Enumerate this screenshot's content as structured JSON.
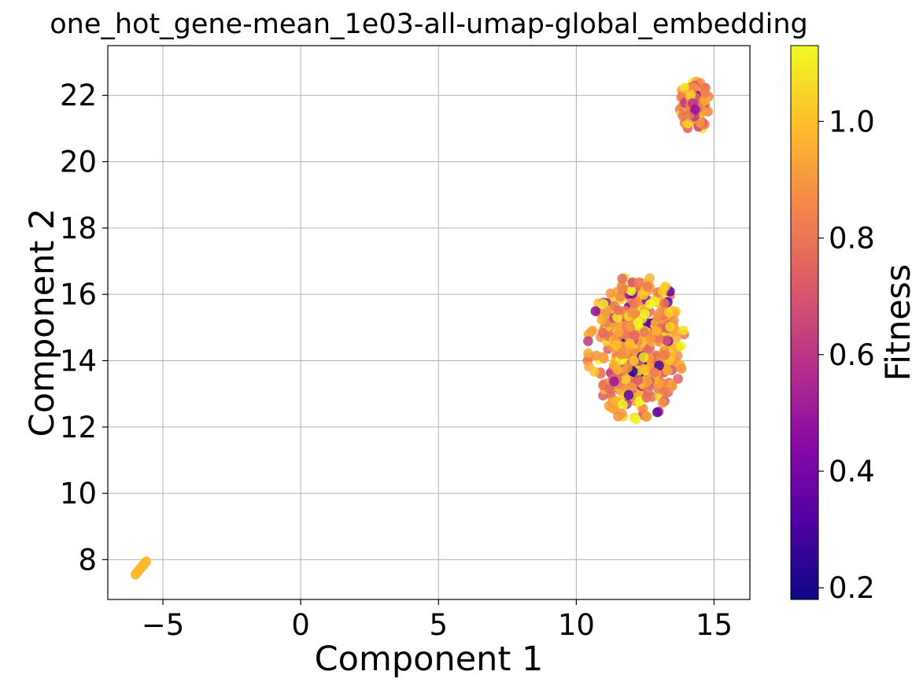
{
  "chart_data": {
    "type": "scatter",
    "title": "one_hot_gene-mean_1e03-all-umap-global_embedding",
    "xlabel": "Component 1",
    "ylabel": "Component 2",
    "xlim": [
      -7.0,
      16.3
    ],
    "ylim": [
      6.8,
      23.5
    ],
    "xticks": [
      -5,
      0,
      5,
      10,
      15
    ],
    "xtick_labels": [
      "−5",
      "0",
      "5",
      "10",
      "15"
    ],
    "yticks": [
      8,
      10,
      12,
      14,
      16,
      18,
      20,
      22
    ],
    "ytick_labels": [
      "8",
      "10",
      "12",
      "14",
      "16",
      "18",
      "20",
      "22"
    ],
    "grid": true,
    "colormap": "plasma",
    "colorbar": {
      "label": "Fitness",
      "range": [
        0.18,
        1.13
      ],
      "ticks": [
        0.2,
        0.4,
        0.6,
        0.8,
        1.0
      ],
      "tick_labels": [
        "0.2",
        "0.4",
        "0.6",
        "0.8",
        "1.0"
      ],
      "colors": [
        "#0d0887",
        "#5302a3",
        "#8b0aa5",
        "#b83289",
        "#db5c68",
        "#f48849",
        "#febd2a",
        "#f0f921"
      ]
    },
    "clusters": [
      {
        "center": [
          12.2,
          14.4
        ],
        "spread": [
          1.1,
          1.3
        ],
        "count": 520,
        "fitness_mean": 0.9,
        "fitness_low_share": 0.08
      },
      {
        "center": [
          14.3,
          21.7
        ],
        "spread": [
          0.35,
          0.45
        ],
        "count": 150,
        "fitness_mean": 0.88,
        "fitness_low_share": 0.05
      },
      {
        "start": [
          -6.0,
          7.55
        ],
        "end": [
          -5.6,
          7.95
        ],
        "count": 12,
        "fitness": 0.98
      }
    ]
  }
}
